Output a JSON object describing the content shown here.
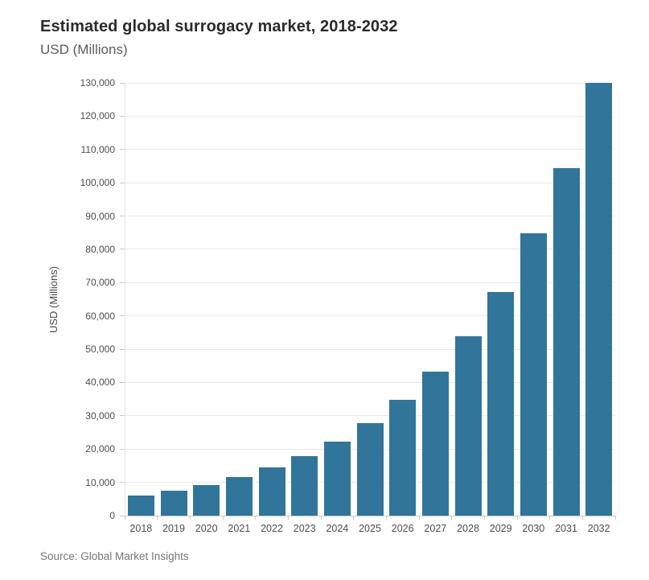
{
  "title": "Estimated global surrogacy market, 2018-2032",
  "subtitle": "USD (Millions)",
  "source": "Source: Global Market Insights",
  "colors": {
    "bar": "#31759A",
    "gridline": "#e9e9e9",
    "axis": "#c9c9c9",
    "title_text": "#2b2b2b",
    "subtitle_text": "#5b5b5b",
    "tick_text": "#4d4d4d",
    "source_text": "#757575"
  },
  "chart_data": {
    "type": "bar",
    "title": "Estimated global surrogacy market, 2018-2032",
    "subtitle": "USD (Millions)",
    "categories": [
      "2018",
      "2019",
      "2020",
      "2021",
      "2022",
      "2023",
      "2024",
      "2025",
      "2026",
      "2027",
      "2028",
      "2029",
      "2030",
      "2031",
      "2032"
    ],
    "values": [
      6000,
      7400,
      9300,
      11500,
      14400,
      17800,
      22300,
      27900,
      34700,
      43200,
      54000,
      67200,
      84700,
      104300,
      130000
    ],
    "xlabel": "",
    "ylabel": "USD (Millions)",
    "ylim": [
      0,
      130000
    ],
    "ytick_step": 10000,
    "grid": "horizontal",
    "legend": "none",
    "bar_color": "#31759A",
    "source": "Source: Global Market Insights"
  }
}
